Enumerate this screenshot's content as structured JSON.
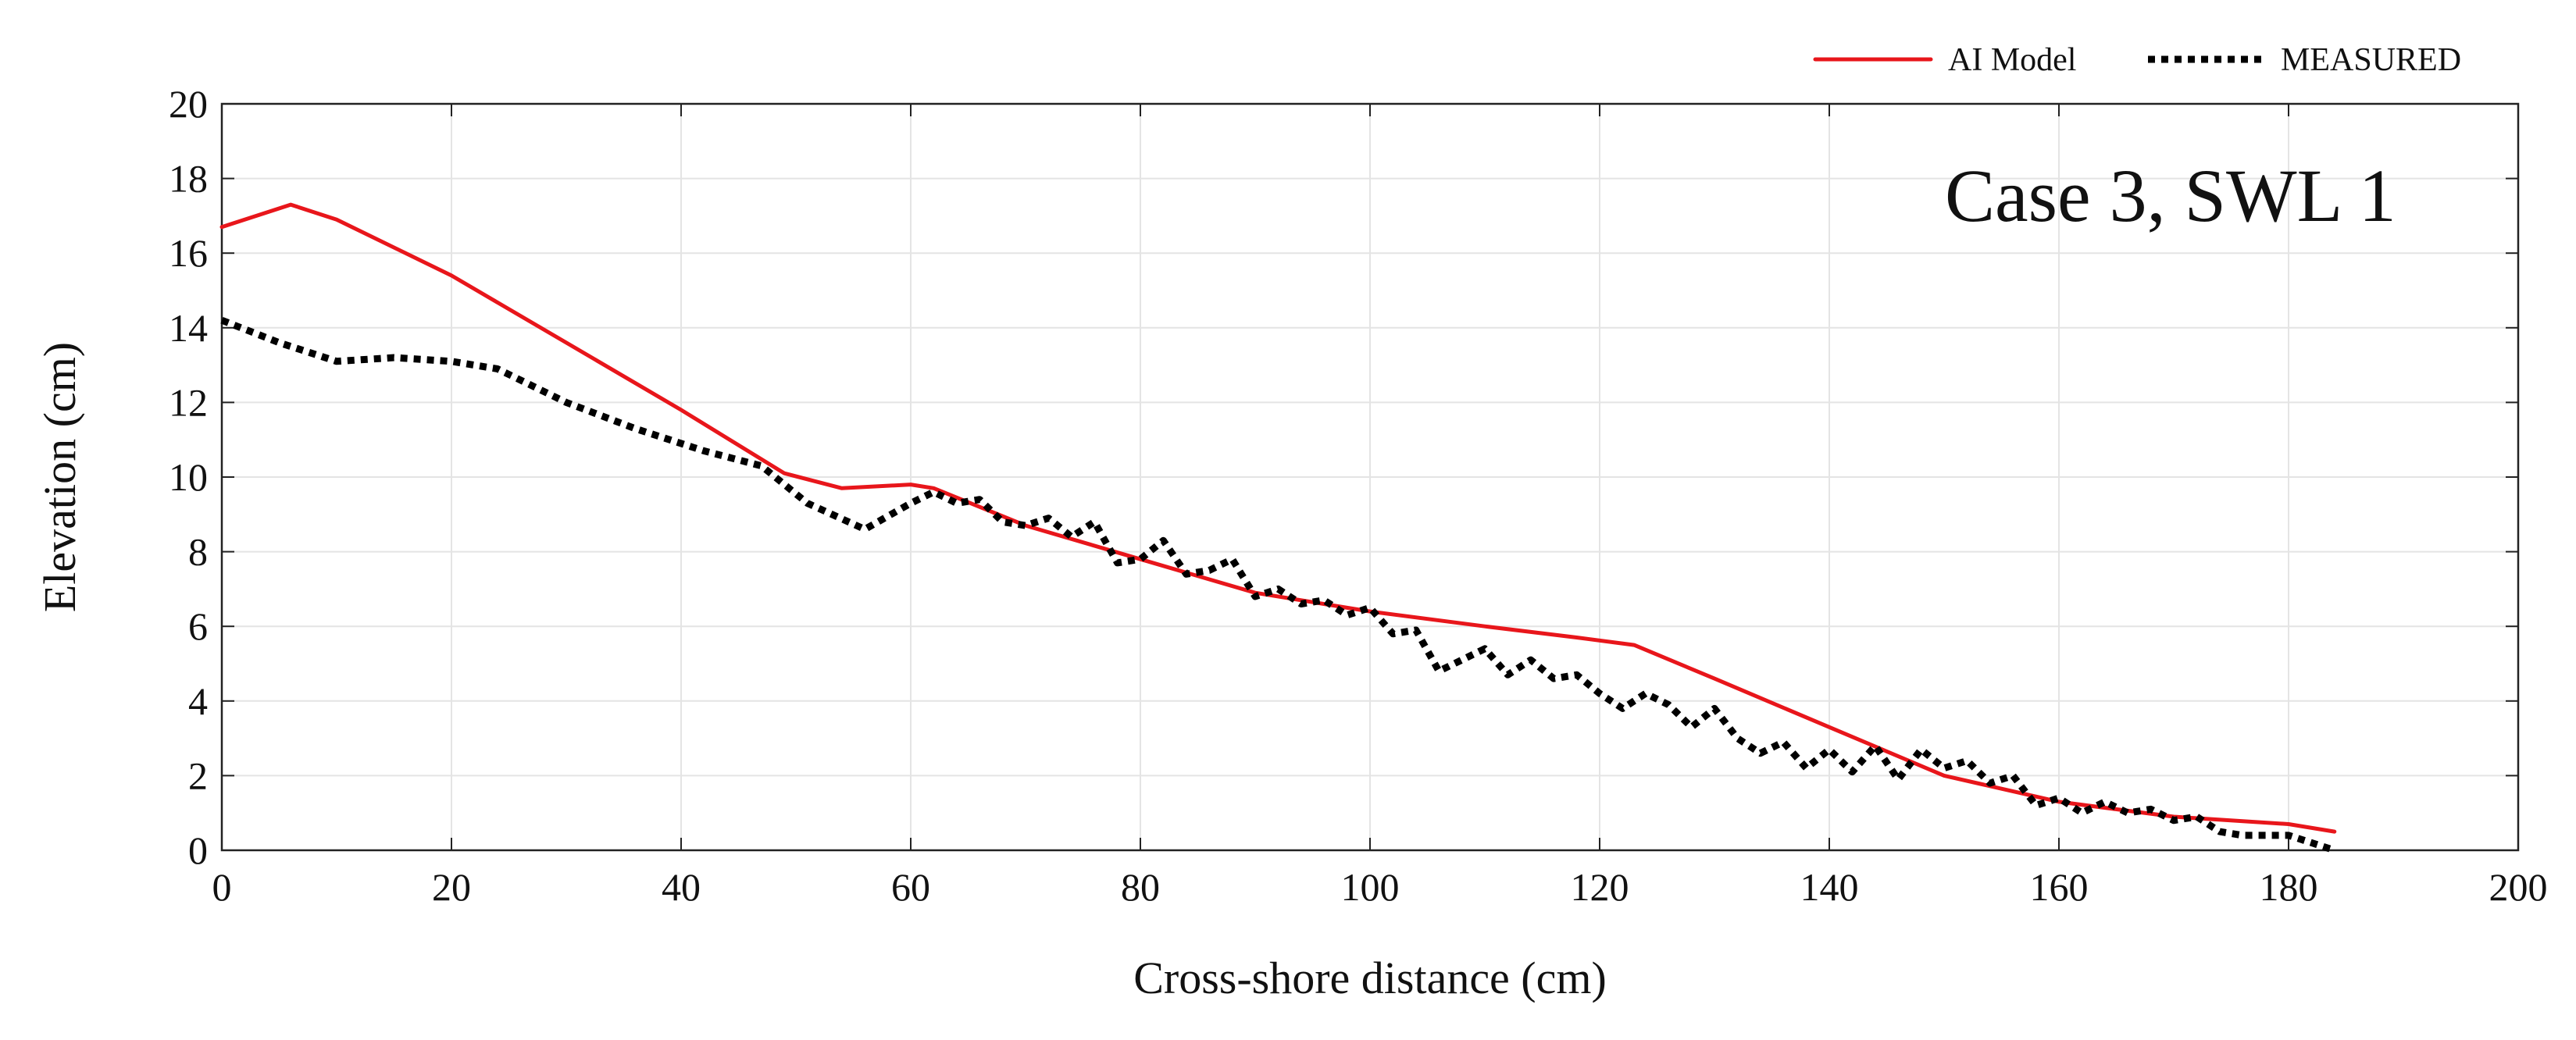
{
  "chart_data": {
    "type": "line",
    "title": "",
    "annotation": "Case 3, SWL 1",
    "xlabel": "Cross-shore distance (cm)",
    "ylabel": "Elevation (cm)",
    "xlim": [
      0,
      200
    ],
    "ylim": [
      0,
      20
    ],
    "xticks": [
      "0",
      "20",
      "40",
      "60",
      "80",
      "100",
      "120",
      "140",
      "160",
      "180",
      "200"
    ],
    "yticks": [
      "0",
      "2",
      "4",
      "6",
      "8",
      "10",
      "12",
      "14",
      "16",
      "18",
      "20"
    ],
    "grid": true,
    "legend_position": "top-right",
    "series": [
      {
        "name": "AI Model",
        "color": "#e8161b",
        "style": "solid",
        "x": [
          0,
          6,
          10,
          20,
          30,
          40,
          49,
          54,
          60,
          62,
          70,
          80,
          90,
          100,
          110,
          118,
          123,
          130,
          140,
          150,
          160,
          170,
          180,
          184
        ],
        "y": [
          16.7,
          17.3,
          16.9,
          15.4,
          13.6,
          11.8,
          10.1,
          9.7,
          9.8,
          9.7,
          8.7,
          7.8,
          6.9,
          6.4,
          6.0,
          5.7,
          5.5,
          4.6,
          3.3,
          2.0,
          1.3,
          0.9,
          0.7,
          0.5
        ]
      },
      {
        "name": "MEASURED",
        "color": "#000000",
        "style": "dotted",
        "x": [
          0,
          5,
          10,
          15,
          20,
          24,
          30,
          36,
          42,
          47,
          51,
          56,
          60,
          62,
          64,
          66,
          68,
          70,
          72,
          74,
          76,
          78,
          80,
          82,
          84,
          86,
          88,
          90,
          92,
          94,
          96,
          98,
          100,
          102,
          104,
          106,
          108,
          110,
          112,
          114,
          116,
          118,
          120,
          122,
          124,
          126,
          128,
          130,
          132,
          134,
          136,
          138,
          140,
          142,
          144,
          146,
          148,
          150,
          152,
          154,
          156,
          158,
          160,
          162,
          164,
          166,
          168,
          170,
          172,
          174,
          176,
          178,
          180,
          182,
          184
        ],
        "y": [
          14.2,
          13.6,
          13.1,
          13.2,
          13.1,
          12.9,
          12.0,
          11.3,
          10.7,
          10.3,
          9.3,
          8.6,
          9.3,
          9.6,
          9.3,
          9.4,
          8.8,
          8.7,
          8.9,
          8.4,
          8.8,
          7.7,
          7.8,
          8.3,
          7.4,
          7.5,
          7.8,
          6.8,
          7.0,
          6.6,
          6.7,
          6.3,
          6.5,
          5.8,
          5.9,
          4.8,
          5.1,
          5.4,
          4.7,
          5.1,
          4.6,
          4.7,
          4.2,
          3.8,
          4.2,
          3.9,
          3.3,
          3.8,
          3.0,
          2.6,
          2.9,
          2.2,
          2.7,
          2.1,
          2.8,
          1.9,
          2.7,
          2.2,
          2.4,
          1.8,
          2.0,
          1.2,
          1.4,
          1.0,
          1.3,
          1.0,
          1.1,
          0.8,
          0.9,
          0.5,
          0.4,
          0.4,
          0.4,
          0.2,
          0.0
        ]
      }
    ]
  }
}
